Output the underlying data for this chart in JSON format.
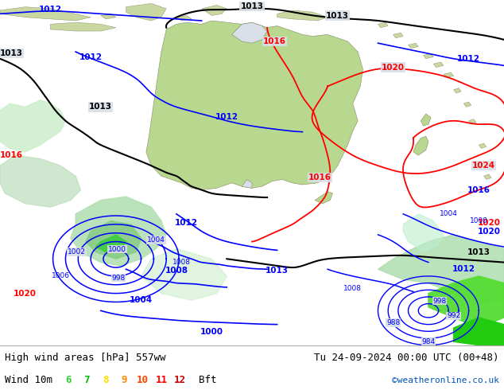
{
  "title_left": "High wind areas [hPa] 557ww",
  "title_right": "Tu 24-09-2024 00:00 UTC (00+48)",
  "subtitle_left": "Wind 10m",
  "subtitle_bft_labels": [
    "6",
    "7",
    "8",
    "9",
    "10",
    "11",
    "12"
  ],
  "subtitle_bft_colors": [
    "#33cc33",
    "#00bb00",
    "#ffdd00",
    "#ff8800",
    "#ff4400",
    "#ff0000",
    "#cc0000"
  ],
  "subtitle_bft_suffix": "Bft",
  "watermark": "©weatheronline.co.uk",
  "watermark_color": "#0055bb",
  "map_bg": "#d8dfe8",
  "land_color": "#b8d890",
  "land_edge": "#888866",
  "bar_bg": "#ffffff",
  "font_size_title": 9,
  "font_size_sub": 9,
  "font_size_watermark": 8,
  "label_fontsize": 7.5
}
